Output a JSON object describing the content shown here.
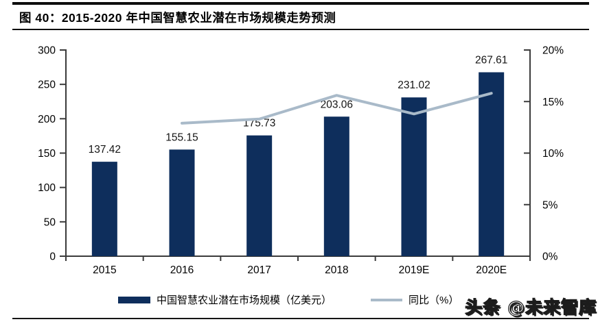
{
  "header": {
    "title": "图 40：2015-2020 年中国智慧农业潜在市场规模走势预测"
  },
  "colors": {
    "bar": "#0e2e5c",
    "line": "#a9bac9",
    "axis": "#3a3a3a",
    "rule": "#0d0d0d"
  },
  "chart_data": {
    "type": "bar",
    "subtype": "bar-line-combo-dual-axis",
    "title": "2015-2020 年中国智慧农业潜在市场规模走势预测",
    "categories": [
      "2015",
      "2016",
      "2017",
      "2018",
      "2019E",
      "2020E"
    ],
    "series": [
      {
        "name": "中国智慧农业潜在市场规模（亿美元）",
        "kind": "bar",
        "axis": "left",
        "values": [
          137.42,
          155.15,
          175.73,
          203.06,
          231.02,
          267.61
        ],
        "labels": [
          "137.42",
          "155.15",
          "175.73",
          "203.06",
          "231.02",
          "267.61"
        ],
        "color": "#0e2e5c"
      },
      {
        "name": "同比（%）",
        "kind": "line",
        "axis": "right",
        "values": [
          null,
          12.9,
          13.3,
          15.6,
          13.8,
          15.8
        ],
        "color": "#a9bac9"
      }
    ],
    "left_axis": {
      "min": 0,
      "max": 300,
      "step": 50,
      "tick_labels": [
        "300",
        "250",
        "200",
        "150",
        "100",
        "50",
        "0"
      ]
    },
    "right_axis": {
      "min": 0,
      "max": 20,
      "step": 5,
      "tick_labels": [
        "20%",
        "15%",
        "10%",
        "5%",
        "0%"
      ]
    },
    "grid": false,
    "data_labels": true,
    "legend_position": "bottom"
  },
  "legend": {
    "bar_label": "中国智慧农业潜在市场规模（亿美元）",
    "line_label": "同比（%）"
  },
  "watermark": {
    "text": "头条 @未来智库"
  }
}
